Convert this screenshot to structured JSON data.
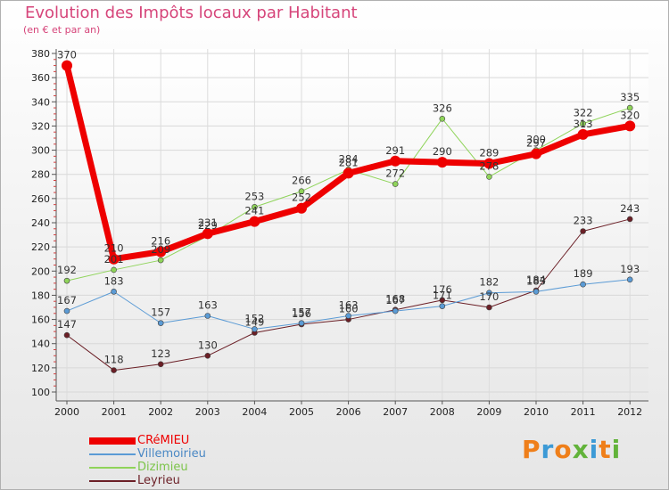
{
  "title": "Evolution des Impôts locaux par Habitant",
  "subtitle": "(en € et par an)",
  "logo": {
    "text": "Proxiti",
    "colors": [
      "#ef7f1a",
      "#3c9ad6",
      "#ef7f1a",
      "#62b33a",
      "#3c9ad6",
      "#ef7f1a",
      "#62b33a"
    ]
  },
  "chart_data": {
    "type": "line",
    "title": "Evolution des Impôts locaux par Habitant",
    "subtitle": "(en € et par an)",
    "xlabel": "",
    "ylabel": "",
    "ylim": [
      100,
      380
    ],
    "yticks": [
      100,
      120,
      140,
      160,
      180,
      200,
      220,
      240,
      260,
      280,
      300,
      320,
      340,
      360,
      380
    ],
    "categories": [
      "2000",
      "2001",
      "2002",
      "2003",
      "2004",
      "2005",
      "2006",
      "2007",
      "2008",
      "2009",
      "2010",
      "2011",
      "2012"
    ],
    "grid": "horizontal",
    "legend_position": "bottom-left",
    "series": [
      {
        "name": "Leyrieu",
        "color": "#6b1f26",
        "labelColor": "#6b1f26",
        "width": 1,
        "marker": 3,
        "values": [
          147,
          118,
          123,
          130,
          149,
          156,
          160,
          168,
          176,
          170,
          184,
          233,
          243
        ]
      },
      {
        "name": "Dizimieu",
        "color": "#8fd45a",
        "labelColor": "#7cc44a",
        "width": 1,
        "marker": 3,
        "values": [
          192,
          201,
          209,
          229,
          253,
          266,
          284,
          272,
          326,
          278,
          300,
          322,
          335
        ]
      },
      {
        "name": "Villemoirieu",
        "color": "#5b9bd5",
        "labelColor": "#4a88c4",
        "width": 1,
        "marker": 3,
        "values": [
          167,
          183,
          157,
          163,
          152,
          157,
          163,
          167,
          171,
          182,
          183,
          189,
          193
        ]
      },
      {
        "name": "CRéMIEU",
        "color": "#ee0000",
        "labelColor": "#ee0000",
        "width": 7,
        "marker": 6,
        "values": [
          370,
          210,
          216,
          231,
          241,
          252,
          281,
          291,
          290,
          289,
          297,
          313,
          320
        ]
      }
    ],
    "legend_order": [
      "CRéMIEU",
      "Villemoirieu",
      "Dizimieu",
      "Leyrieu"
    ]
  }
}
